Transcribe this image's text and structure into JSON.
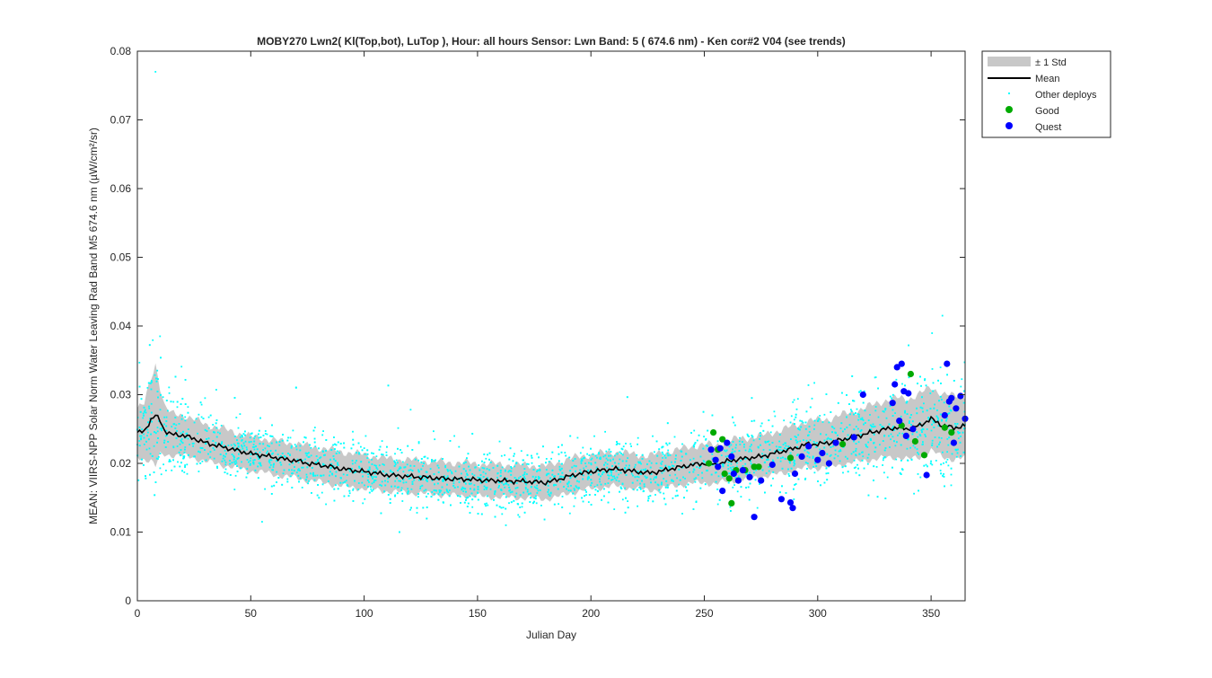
{
  "chart_data": {
    "type": "scatter",
    "title": "MOBY270   Lwn2( Kl(Top,bot), LuTop ),   Hour: all hours  Sensor: Lwn Band: 5 ( 674.6 nm)  - Ken cor#2 V04 (see trends)",
    "xlabel": "Julian Day",
    "ylabel": "MEAN: VIIRS-NPP Solar Norm Water Leaving Rad Band M5 674.6 nm (µW/cm²/sr)",
    "xlim": [
      0,
      365
    ],
    "ylim": [
      0,
      0.08
    ],
    "x_ticks": [
      "0",
      "50",
      "100",
      "150",
      "200",
      "250",
      "300",
      "350"
    ],
    "x_tick_values": [
      0,
      50,
      100,
      150,
      200,
      250,
      300,
      350
    ],
    "y_ticks": [
      "0",
      "0.01",
      "0.02",
      "0.03",
      "0.04",
      "0.05",
      "0.06",
      "0.07",
      "0.08"
    ],
    "y_tick_values": [
      0,
      0.01,
      0.02,
      0.03,
      0.04,
      0.05,
      0.06,
      0.07,
      0.08
    ],
    "grid": false,
    "legend_position": "outside-top-right",
    "legend": [
      "± 1 Std",
      "Mean",
      "Other deploys",
      "Good",
      "Quest"
    ],
    "colors": {
      "std_band": "#c8c8c8",
      "mean": "#000000",
      "other": "#00ffff",
      "good": "#00aa00",
      "quest": "#0000ff"
    },
    "mean_line": {
      "x": [
        0,
        3,
        6,
        8,
        10,
        12,
        15,
        20,
        25,
        30,
        35,
        40,
        45,
        50,
        55,
        60,
        65,
        70,
        75,
        80,
        85,
        90,
        95,
        100,
        105,
        110,
        115,
        120,
        125,
        130,
        135,
        140,
        145,
        150,
        155,
        160,
        165,
        170,
        175,
        180,
        185,
        190,
        195,
        200,
        205,
        210,
        215,
        220,
        225,
        230,
        235,
        240,
        245,
        250,
        255,
        260,
        265,
        270,
        275,
        280,
        285,
        290,
        295,
        300,
        305,
        310,
        315,
        320,
        325,
        330,
        335,
        340,
        345,
        350,
        355,
        360,
        365
      ],
      "mean": [
        0.0245,
        0.0246,
        0.0264,
        0.027,
        0.0262,
        0.0248,
        0.0242,
        0.0241,
        0.0236,
        0.023,
        0.0226,
        0.0222,
        0.0218,
        0.0214,
        0.0212,
        0.0209,
        0.0206,
        0.0204,
        0.02,
        0.0198,
        0.0195,
        0.0192,
        0.019,
        0.0188,
        0.0186,
        0.0183,
        0.0182,
        0.0181,
        0.018,
        0.0179,
        0.0178,
        0.0177,
        0.0177,
        0.0176,
        0.0175,
        0.0175,
        0.0174,
        0.0174,
        0.0173,
        0.0172,
        0.0176,
        0.0181,
        0.0185,
        0.0188,
        0.019,
        0.0192,
        0.019,
        0.0188,
        0.0186,
        0.0188,
        0.0192,
        0.0195,
        0.0198,
        0.02,
        0.0198,
        0.0203,
        0.0206,
        0.0208,
        0.021,
        0.0214,
        0.0218,
        0.0222,
        0.0228,
        0.0228,
        0.023,
        0.0234,
        0.0238,
        0.0242,
        0.0246,
        0.025,
        0.0252,
        0.025,
        0.0255,
        0.0265,
        0.0255,
        0.0252,
        0.0254
      ],
      "std": [
        0.0035,
        0.004,
        0.006,
        0.0075,
        0.005,
        0.0035,
        0.003,
        0.003,
        0.0028,
        0.0027,
        0.0027,
        0.0026,
        0.0026,
        0.0025,
        0.0025,
        0.0025,
        0.0025,
        0.0025,
        0.0025,
        0.0025,
        0.0025,
        0.0025,
        0.0025,
        0.0025,
        0.0024,
        0.0024,
        0.0024,
        0.0024,
        0.0024,
        0.0024,
        0.0024,
        0.0024,
        0.0024,
        0.0024,
        0.0024,
        0.0024,
        0.0024,
        0.0024,
        0.0024,
        0.0024,
        0.0025,
        0.0025,
        0.0025,
        0.0025,
        0.0025,
        0.0025,
        0.0025,
        0.0025,
        0.0025,
        0.0026,
        0.0026,
        0.0026,
        0.0027,
        0.0028,
        0.0028,
        0.0029,
        0.003,
        0.003,
        0.003,
        0.0031,
        0.0032,
        0.0033,
        0.0034,
        0.0035,
        0.0035,
        0.0036,
        0.0037,
        0.0038,
        0.004,
        0.0042,
        0.0043,
        0.0044,
        0.0046,
        0.0046,
        0.0046,
        0.0046,
        0.0046
      ]
    },
    "series": [
      {
        "name": "Good",
        "x": [
          252,
          254,
          256,
          258,
          259,
          261,
          262,
          264,
          268,
          272,
          274,
          288,
          311,
          337,
          341,
          343,
          347,
          356,
          359
        ],
        "y": [
          0.02,
          0.0245,
          0.022,
          0.0235,
          0.0185,
          0.0178,
          0.0142,
          0.019,
          0.019,
          0.0195,
          0.0195,
          0.0208,
          0.0228,
          0.0255,
          0.033,
          0.0232,
          0.0212,
          0.0252,
          0.0245
        ]
      },
      {
        "name": "Quest",
        "x": [
          253,
          255,
          256,
          257,
          258,
          260,
          262,
          263,
          265,
          267,
          270,
          272,
          275,
          280,
          284,
          288,
          289,
          290,
          293,
          296,
          300,
          302,
          305,
          308,
          316,
          320,
          333,
          334,
          335,
          336,
          337,
          338,
          339,
          340,
          342,
          348,
          356,
          357,
          358,
          359,
          360,
          361,
          363,
          365
        ],
        "y": [
          0.022,
          0.0205,
          0.0195,
          0.0222,
          0.016,
          0.023,
          0.021,
          0.0185,
          0.0175,
          0.019,
          0.018,
          0.0122,
          0.0175,
          0.0198,
          0.0148,
          0.0143,
          0.0135,
          0.0185,
          0.021,
          0.0225,
          0.0205,
          0.0215,
          0.02,
          0.023,
          0.0238,
          0.03,
          0.0288,
          0.0315,
          0.034,
          0.0262,
          0.0345,
          0.0305,
          0.024,
          0.0302,
          0.025,
          0.0183,
          0.027,
          0.0345,
          0.029,
          0.0295,
          0.023,
          0.028,
          0.0298,
          0.0265
        ]
      }
    ],
    "other_deploys": {
      "name": "Other deploys",
      "description_free": true,
      "x_range": [
        0,
        365
      ],
      "count": 3600,
      "spread": 0.003,
      "seed": 27
    }
  }
}
